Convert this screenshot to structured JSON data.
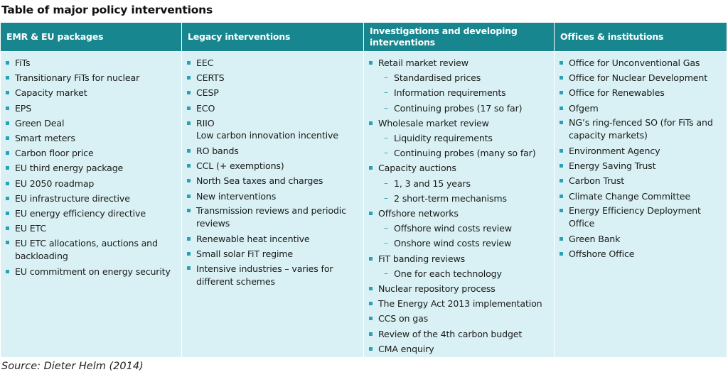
{
  "title": "Table of major policy interventions",
  "source": "Source: Dieter Helm (2014)",
  "columns": [
    {
      "header": "EMR & EU packages",
      "items": [
        {
          "text": "FiTs"
        },
        {
          "text": "Transitionary FiTs for nuclear"
        },
        {
          "text": "Capacity market"
        },
        {
          "text": "EPS"
        },
        {
          "text": "Green Deal"
        },
        {
          "text": "Smart meters"
        },
        {
          "text": "Carbon floor price"
        },
        {
          "text": "EU third energy package"
        },
        {
          "text": "EU 2050 roadmap"
        },
        {
          "text": "EU infrastructure directive"
        },
        {
          "text": "EU energy efficiency directive"
        },
        {
          "text": "EU ETC"
        },
        {
          "text": "EU ETC allocations, auctions and backloading"
        },
        {
          "text": "EU commitment on energy security"
        }
      ]
    },
    {
      "header": "Legacy interventions",
      "items": [
        {
          "text": "EEC"
        },
        {
          "text": "CERTS"
        },
        {
          "text": "CESP"
        },
        {
          "text": "ECO"
        },
        {
          "text": "RIIO",
          "continuation": "Low carbon innovation incentive"
        },
        {
          "text": "RO bands"
        },
        {
          "text": "CCL (+ exemptions)"
        },
        {
          "text": "North Sea taxes and charges"
        },
        {
          "text": "New interventions"
        },
        {
          "text": "Transmission reviews and periodic reviews"
        },
        {
          "text": "Renewable heat incentive"
        },
        {
          "text": "Small solar FiT regime"
        },
        {
          "text": "Intensive industries – varies for different schemes"
        }
      ]
    },
    {
      "header": "Investigations and developing interventions",
      "items": [
        {
          "text": "Retail market review",
          "subs": [
            "Standardised prices",
            "Information requirements",
            "Continuing probes (17 so far)"
          ]
        },
        {
          "text": "Wholesale market review",
          "subs": [
            "Liquidity requirements",
            "Continuing probes (many so far)"
          ]
        },
        {
          "text": "Capacity auctions",
          "subs": [
            "1, 3 and 15 years",
            "2 short-term mechanisms"
          ]
        },
        {
          "text": "Offshore networks",
          "subs": [
            "Offshore wind costs review",
            "Onshore wind costs review"
          ]
        },
        {
          "text": "FiT banding reviews",
          "subs": [
            "One for each technology"
          ]
        },
        {
          "text": "Nuclear repository process"
        },
        {
          "text": "The Energy Act 2013 implementation"
        },
        {
          "text": "CCS on gas"
        },
        {
          "text": "Review of the 4th carbon budget"
        },
        {
          "text": "CMA enquiry"
        }
      ]
    },
    {
      "header": "Offices & institutions",
      "items": [
        {
          "text": "Office for Unconventional Gas"
        },
        {
          "text": "Office for Nuclear Development"
        },
        {
          "text": "Office for Renewables"
        },
        {
          "text": "Ofgem"
        },
        {
          "text": "NG’s ring-fenced SO (for FiTs and capacity markets)"
        },
        {
          "text": "Environment Agency"
        },
        {
          "text": "Energy Saving Trust"
        },
        {
          "text": "Carbon Trust"
        },
        {
          "text": "Climate Change Committee"
        },
        {
          "text": "Energy Efficiency Deployment Office"
        },
        {
          "text": "Green Bank"
        },
        {
          "text": "Offshore Office"
        }
      ]
    }
  ],
  "colors": {
    "header_bg": "#17868f",
    "body_bg": "#d9f1f4",
    "bullet": "#2aa0b6"
  }
}
